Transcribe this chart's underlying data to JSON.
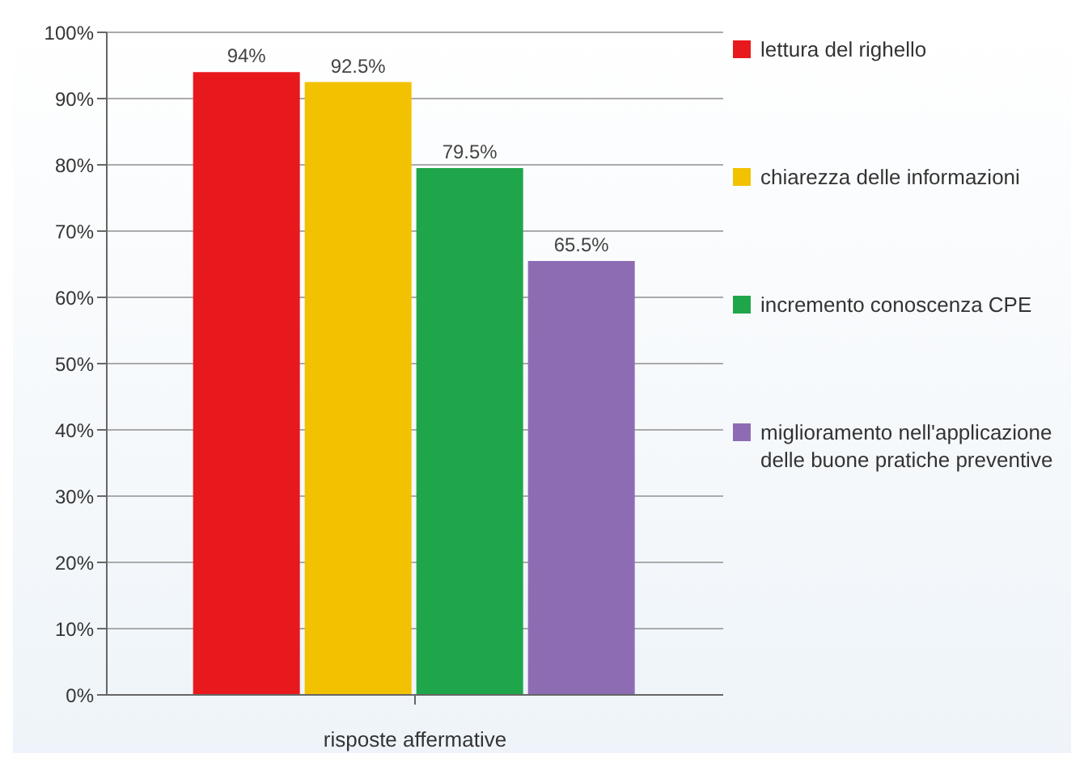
{
  "chart_data": {
    "type": "bar",
    "xlabel": "risposte affermative",
    "categories": [
      null
    ],
    "series": [
      {
        "name": "lettura del righello",
        "color": "#e8191c",
        "values": [
          94
        ],
        "value_labels": [
          "94%"
        ]
      },
      {
        "name": "chiarezza delle informazioni",
        "color": "#f2c200",
        "values": [
          92.5
        ],
        "value_labels": [
          "92.5%"
        ]
      },
      {
        "name": "incremento conoscenza CPE",
        "color": "#1fa64a",
        "values": [
          79.5
        ],
        "value_labels": [
          "79.5%"
        ]
      },
      {
        "name": "miglioramento nell'applicazione delle buone pratiche preventive",
        "color": "#8e6cb4",
        "values": [
          65.5
        ],
        "value_labels": [
          "65.5%"
        ]
      }
    ],
    "ylim": [
      0,
      100
    ],
    "yticks": [
      {
        "value": 0,
        "label": "0%"
      },
      {
        "value": 10,
        "label": "10%"
      },
      {
        "value": 20,
        "label": "20%"
      },
      {
        "value": 30,
        "label": "30%"
      },
      {
        "value": 40,
        "label": "40%"
      },
      {
        "value": 50,
        "label": "50%"
      },
      {
        "value": 60,
        "label": "60%"
      },
      {
        "value": 70,
        "label": "70%"
      },
      {
        "value": 80,
        "label": "80%"
      },
      {
        "value": 90,
        "label": "90%"
      },
      {
        "value": 100,
        "label": "100%"
      }
    ],
    "grid": "y",
    "legend": "right"
  }
}
